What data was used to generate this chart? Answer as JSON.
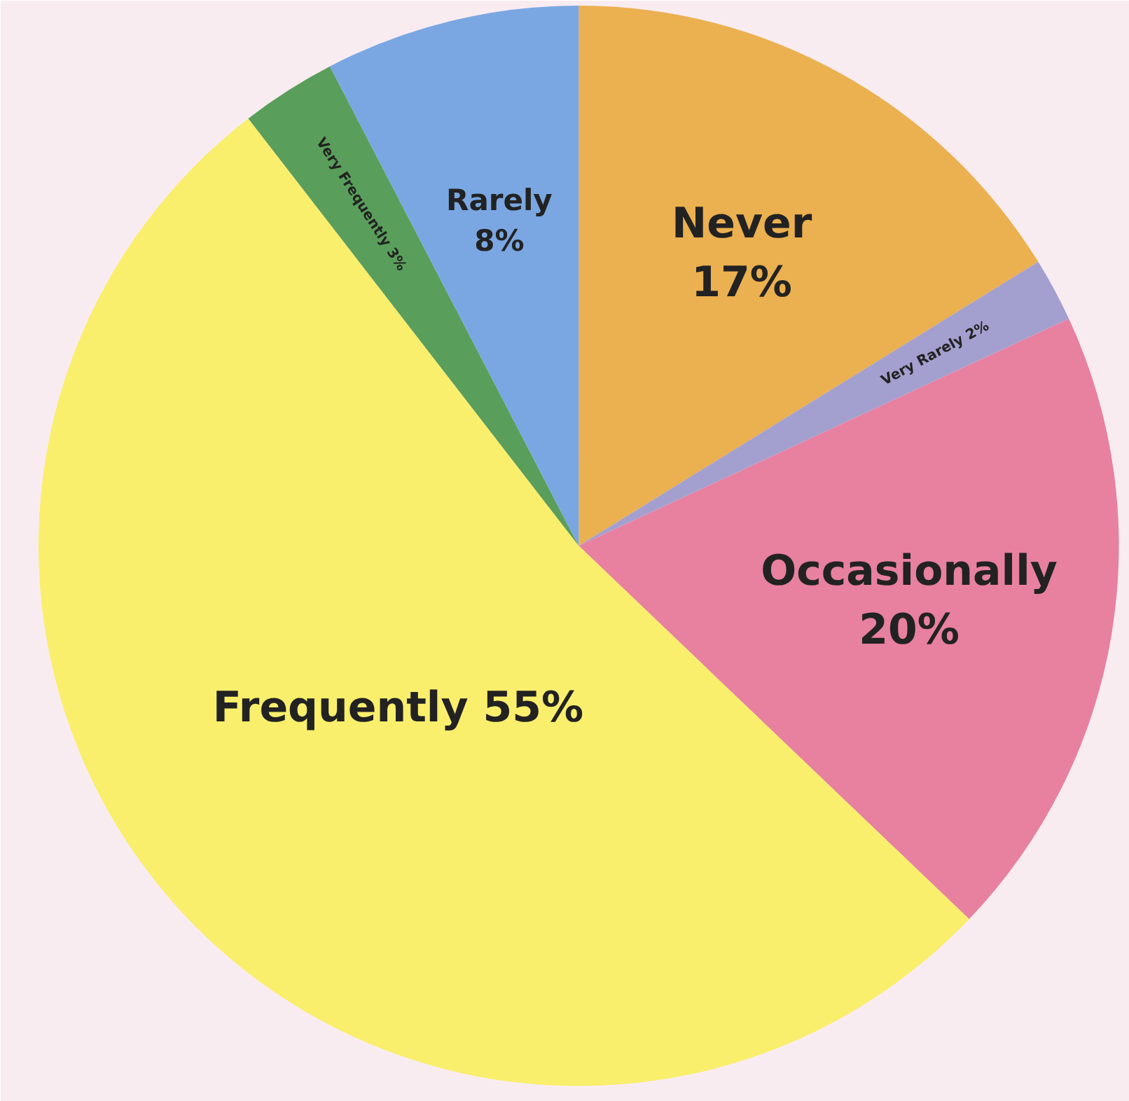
{
  "chart_data": {
    "type": "pie",
    "categories": [
      "Never",
      "Very Rarely",
      "Occasionally",
      "Frequently",
      "Very Frequently",
      "Rarely"
    ],
    "values": [
      17,
      2,
      20,
      55,
      3,
      8
    ],
    "colors": [
      "#ebb04f",
      "#a3a0d0",
      "#e8809f",
      "#f9ef6c",
      "#5a9e5c",
      "#7aa7e2"
    ],
    "value_labels": [
      "17%",
      "2%",
      "20%",
      "55%",
      "3%",
      "8%"
    ]
  }
}
